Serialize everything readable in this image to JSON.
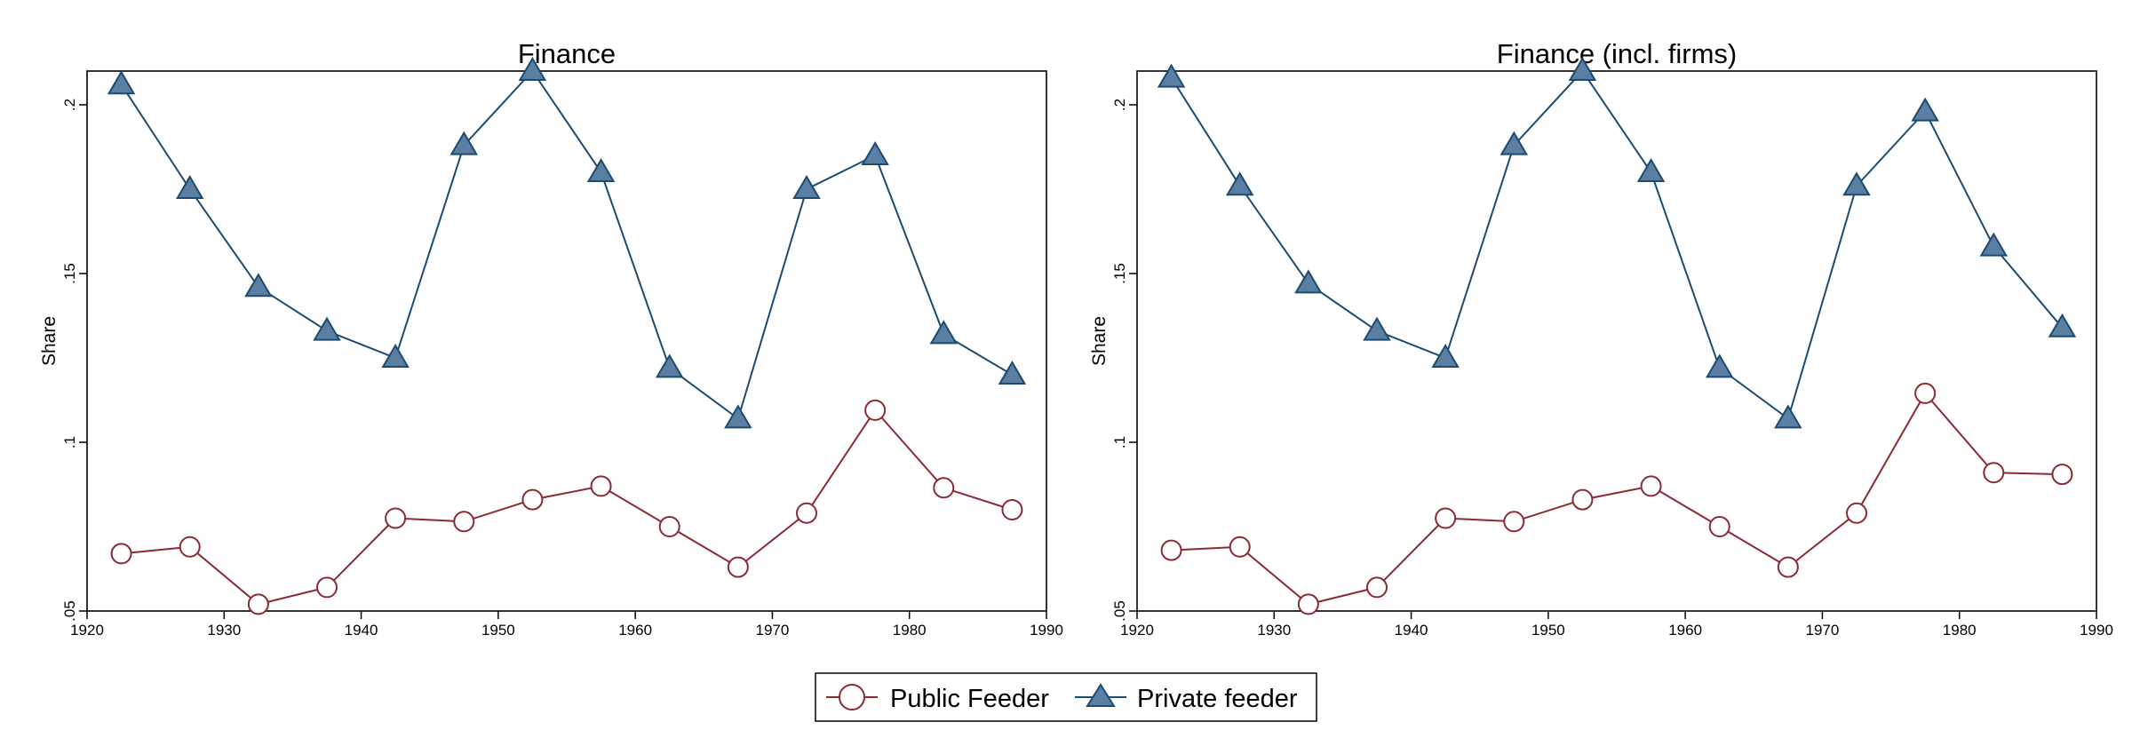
{
  "legend": {
    "position": "bottom-center",
    "items": [
      {
        "label": "Public Feeder",
        "marker": "hollow-circle",
        "color": "#8b2a33"
      },
      {
        "label": "Private feeder",
        "marker": "filled-triangle",
        "color": "#1d4a70",
        "fill": "#5a7fa2"
      }
    ]
  },
  "chart_data": [
    {
      "type": "line",
      "title": "Finance",
      "xlabel": "",
      "ylabel": "Share",
      "xlim": [
        1920,
        1990
      ],
      "ylim": [
        0.05,
        0.21
      ],
      "xticks": [
        1920,
        1930,
        1940,
        1950,
        1960,
        1970,
        1980,
        1990
      ],
      "xtick_labels": [
        "1920",
        "1930",
        "1940",
        "1950",
        "1960",
        "1970",
        "1980",
        "1990"
      ],
      "yticks": [
        0.05,
        0.1,
        0.15,
        0.2
      ],
      "ytick_labels": [
        ".05",
        ".1",
        ".15",
        ".2"
      ],
      "grid": false,
      "x": [
        1922.5,
        1927.5,
        1932.5,
        1937.5,
        1942.5,
        1947.5,
        1952.5,
        1957.5,
        1962.5,
        1967.5,
        1972.5,
        1977.5,
        1982.5,
        1987.5
      ],
      "series": [
        {
          "name": "Public Feeder",
          "values": [
            0.067,
            0.069,
            0.052,
            0.057,
            0.0775,
            0.0765,
            0.083,
            0.087,
            0.075,
            0.063,
            0.079,
            0.1095,
            0.0865,
            0.08
          ]
        },
        {
          "name": "Private feeder",
          "values": [
            0.206,
            0.175,
            0.146,
            0.133,
            0.125,
            0.188,
            0.21,
            0.18,
            0.122,
            0.107,
            0.175,
            0.185,
            0.132,
            0.12
          ]
        }
      ]
    },
    {
      "type": "line",
      "title": "Finance (incl. firms)",
      "xlabel": "",
      "ylabel": "Share",
      "xlim": [
        1920,
        1990
      ],
      "ylim": [
        0.05,
        0.21
      ],
      "xticks": [
        1920,
        1930,
        1940,
        1950,
        1960,
        1970,
        1980,
        1990
      ],
      "xtick_labels": [
        "1920",
        "1930",
        "1940",
        "1950",
        "1960",
        "1970",
        "1980",
        "1990"
      ],
      "yticks": [
        0.05,
        0.1,
        0.15,
        0.2
      ],
      "ytick_labels": [
        ".05",
        ".1",
        ".15",
        ".2"
      ],
      "grid": false,
      "x": [
        1922.5,
        1927.5,
        1932.5,
        1937.5,
        1942.5,
        1947.5,
        1952.5,
        1957.5,
        1962.5,
        1967.5,
        1972.5,
        1977.5,
        1982.5,
        1987.5
      ],
      "series": [
        {
          "name": "Public Feeder",
          "values": [
            0.068,
            0.069,
            0.052,
            0.057,
            0.0775,
            0.0765,
            0.083,
            0.087,
            0.075,
            0.063,
            0.079,
            0.1145,
            0.091,
            0.0905
          ]
        },
        {
          "name": "Private feeder",
          "values": [
            0.208,
            0.176,
            0.147,
            0.133,
            0.125,
            0.188,
            0.21,
            0.18,
            0.122,
            0.107,
            0.176,
            0.198,
            0.158,
            0.134
          ]
        }
      ]
    }
  ]
}
